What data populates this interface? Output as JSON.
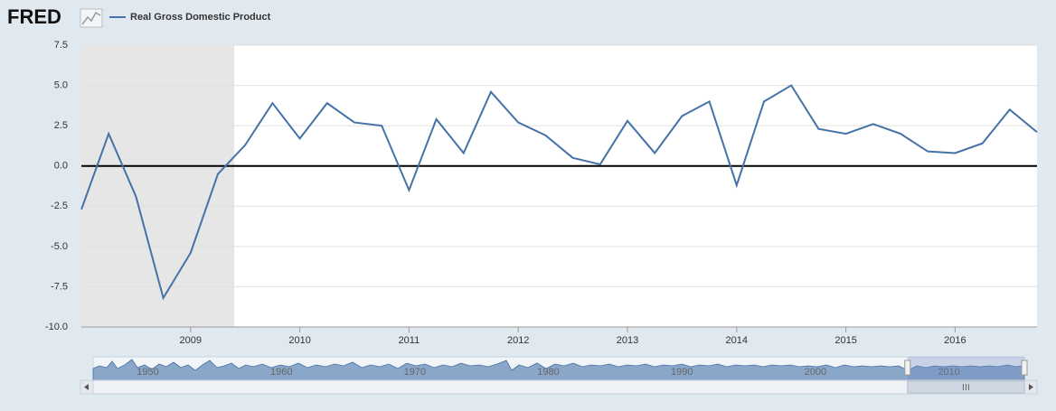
{
  "logo": "FRED",
  "chart_data": {
    "type": "line",
    "x": [
      2008,
      2008.25,
      2008.5,
      2008.75,
      2009,
      2009.25,
      2009.5,
      2009.75,
      2010,
      2010.25,
      2010.5,
      2010.75,
      2011,
      2011.25,
      2011.5,
      2011.75,
      2012,
      2012.25,
      2012.5,
      2012.75,
      2013,
      2013.25,
      2013.5,
      2013.75,
      2014,
      2014.25,
      2014.5,
      2014.75,
      2015,
      2015.25,
      2015.5,
      2015.75,
      2016,
      2016.25,
      2016.5,
      2016.75
    ],
    "series": [
      {
        "name": "Real Gross Domestic Product",
        "color": "#4572a7",
        "values": [
          -2.7,
          2.0,
          -1.9,
          -8.2,
          -5.4,
          -0.5,
          1.3,
          3.9,
          1.7,
          3.9,
          2.7,
          2.5,
          -1.5,
          2.9,
          0.8,
          4.6,
          2.7,
          1.9,
          0.5,
          0.1,
          2.8,
          0.8,
          3.1,
          4.0,
          -1.2,
          4.0,
          5.0,
          2.3,
          2.0,
          2.6,
          2.0,
          0.9,
          0.8,
          1.4,
          3.5,
          2.1
        ]
      }
    ],
    "xlim": [
      2008,
      2016.75
    ],
    "xticks": [
      2009,
      2010,
      2011,
      2012,
      2013,
      2014,
      2015,
      2016
    ],
    "ylim": [
      -10,
      7.5
    ],
    "yticks": [
      {
        "value": -10,
        "label": "-10.0"
      },
      -7.5,
      {
        "value": -5,
        "label": "-5.0"
      },
      -2.5,
      {
        "value": 0,
        "label": "0.0"
      },
      2.5,
      {
        "value": 5,
        "label": "5.0"
      },
      7.5
    ],
    "grid": true,
    "shaded_range": [
      2008,
      2009.4
    ],
    "navigator": {
      "xlim": [
        1947,
        2016.75
      ],
      "ticks": [
        1950,
        1960,
        1970,
        1980,
        1990,
        2000,
        2010
      ],
      "selected": [
        2008,
        2016.75
      ]
    }
  }
}
